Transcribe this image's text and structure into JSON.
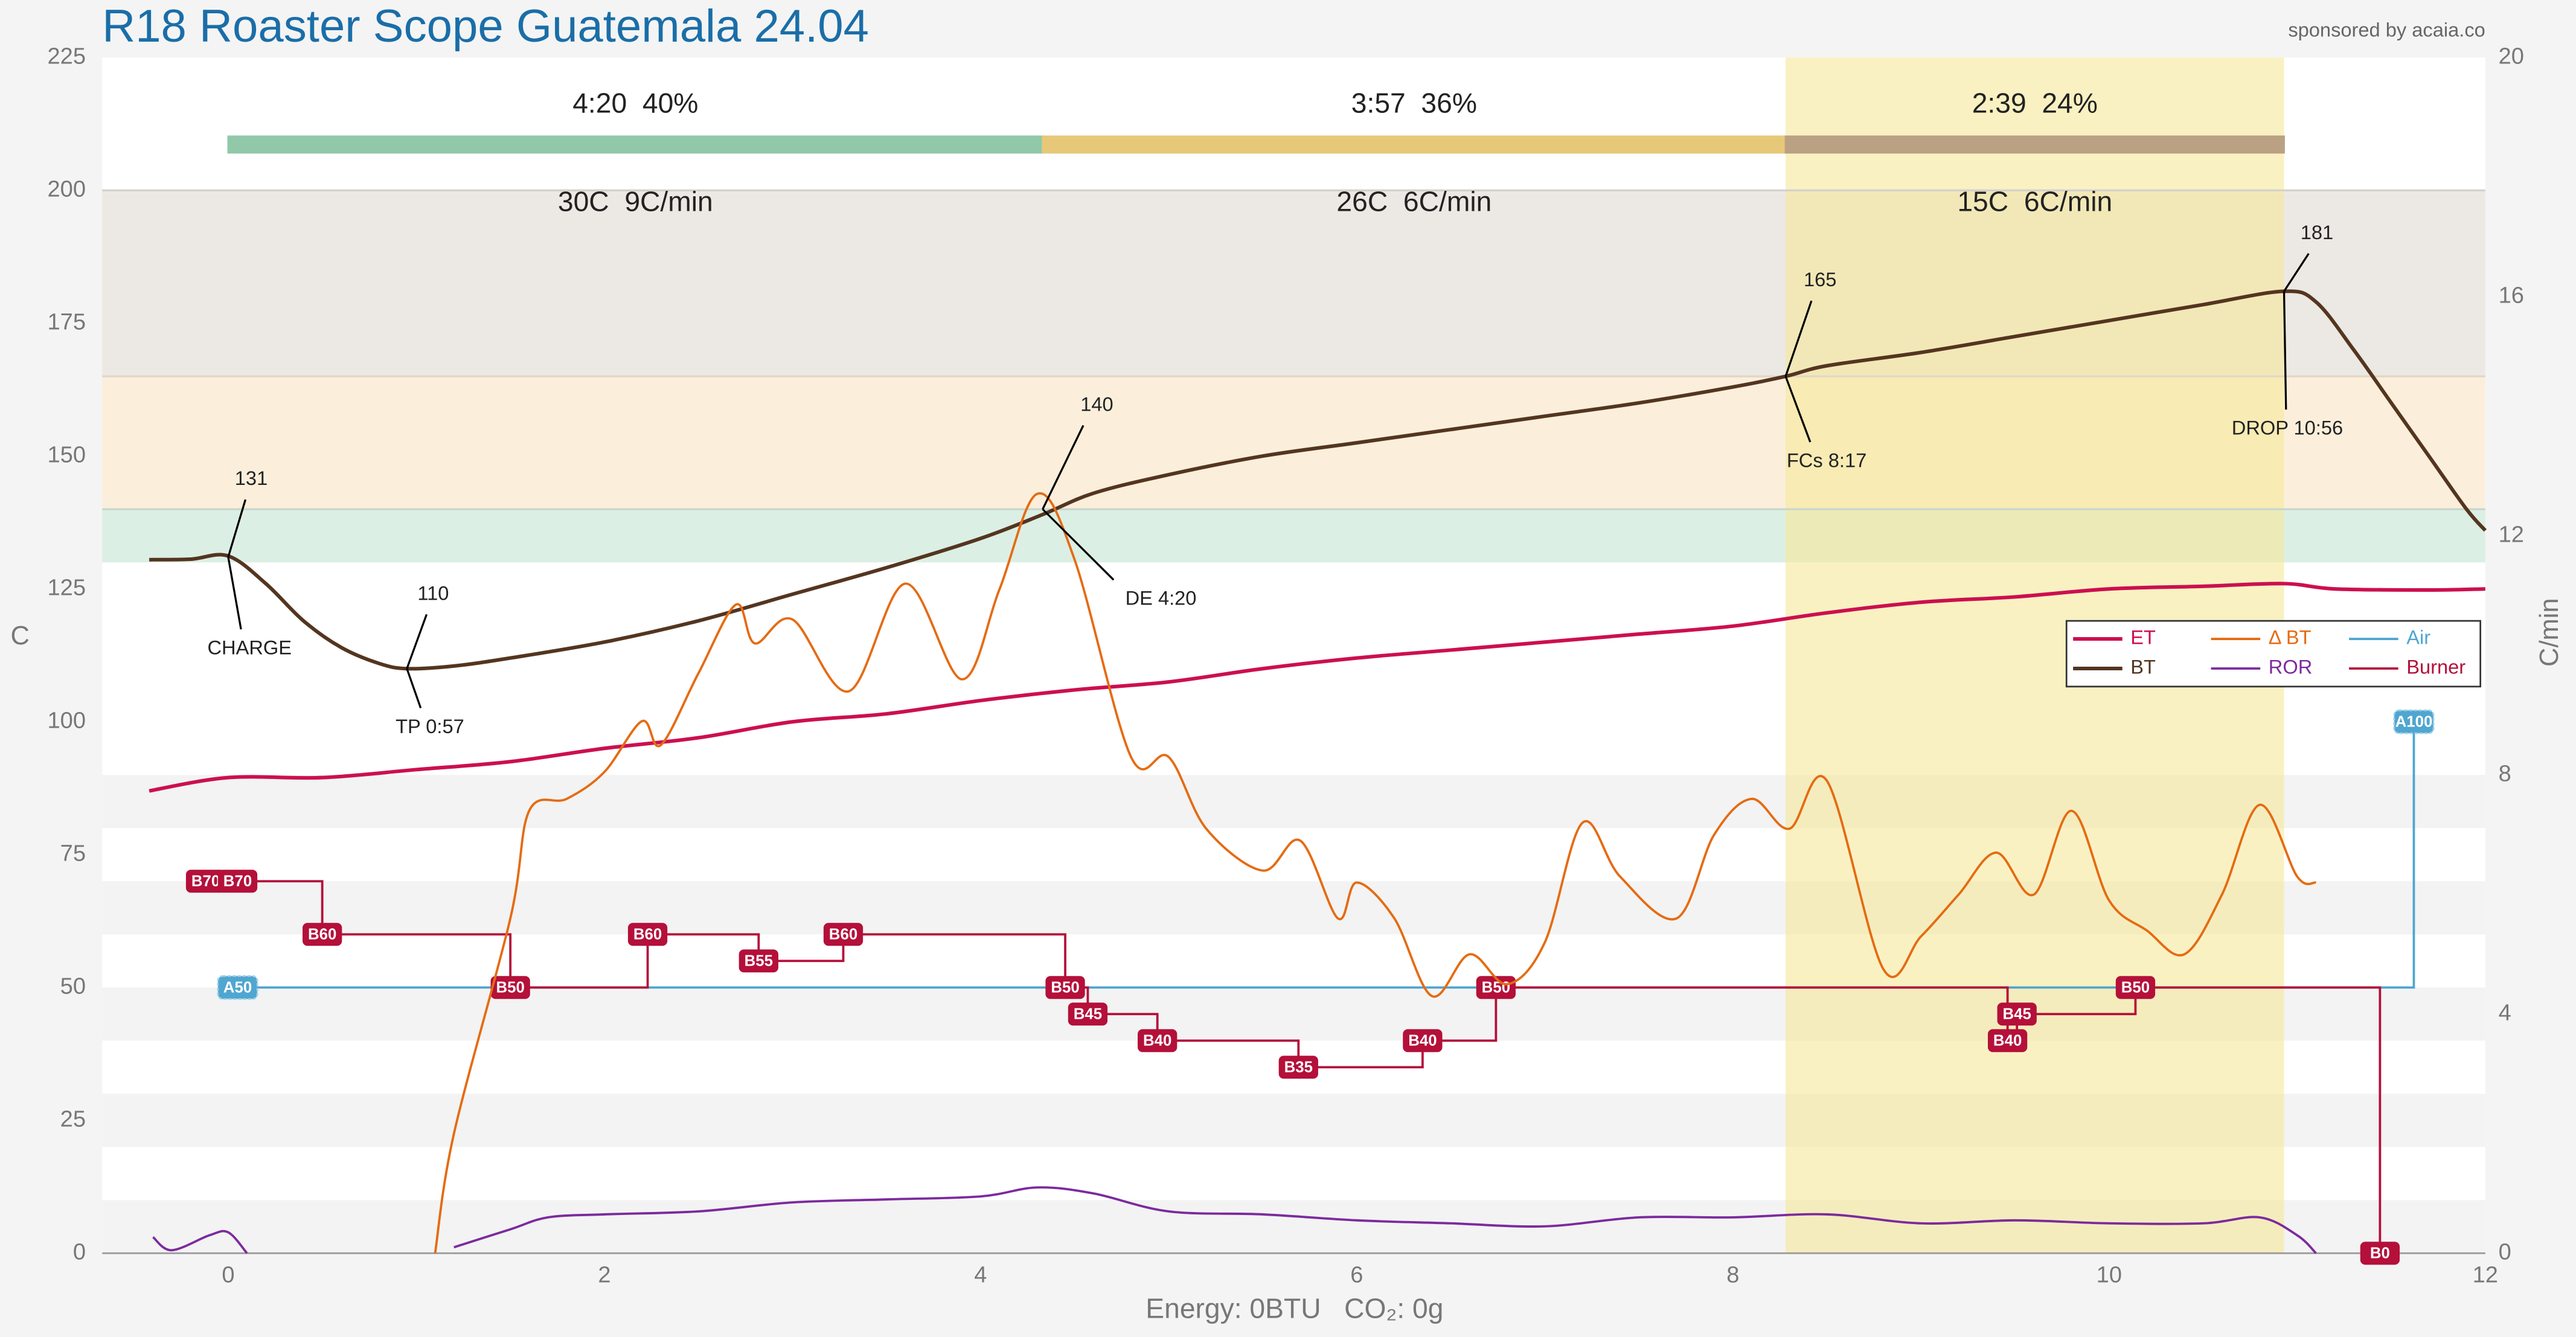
{
  "chart_data": {
    "type": "line",
    "title": "R18 Roaster Scope Guatemala 24.04",
    "subtitle": "sponsored by acaia.co",
    "x_label": "Energy: 0BTU   CO₂: 0g",
    "y_label": "C",
    "y2_label": "C/min",
    "xlim": [
      -0.67,
      12
    ],
    "xticks": [
      0,
      2,
      4,
      6,
      8,
      10,
      12
    ],
    "ylim": [
      0,
      225
    ],
    "yticks": [
      0,
      25,
      50,
      75,
      100,
      125,
      150,
      175,
      200,
      225
    ],
    "y2lim": [
      0,
      20
    ],
    "y2ticks": [
      0,
      4,
      8,
      12,
      16,
      20
    ],
    "legend": "right",
    "phases": [
      {
        "start": 0,
        "end": 4.33,
        "color": "#98d3b2",
        "time_pct": "4:20  40%",
        "rise": "30C  9C/min"
      },
      {
        "start": 4.33,
        "end": 8.28,
        "color": "#f2d27e",
        "time_pct": "3:57  36%",
        "rise": "26C  6C/min"
      },
      {
        "start": 8.28,
        "end": 10.93,
        "color": "#c4a98a",
        "time_pct": "2:39  24%",
        "rise": "15C  6C/min"
      }
    ],
    "highlight_phase": 2,
    "highlight_color": "#f7e79a",
    "temp_bands": [
      {
        "from": 130,
        "to": 140,
        "color": "#dcefe4"
      },
      {
        "from": 140,
        "to": 165,
        "color": "#fbefdc"
      },
      {
        "from": 165,
        "to": 200,
        "color": "#ece8e3"
      }
    ],
    "stripes": [
      [
        0,
        10
      ],
      [
        20,
        30
      ],
      [
        40,
        50
      ],
      [
        60,
        70
      ],
      [
        80,
        90
      ]
    ],
    "events": [
      {
        "label": "CHARGE",
        "time": 0,
        "value": 131
      },
      {
        "label": "TP 0:57",
        "time": 0.95,
        "value": 110
      },
      {
        "label": "DE 4:20",
        "time": 4.33,
        "value": 140
      },
      {
        "label": "FCs 8:17",
        "time": 8.28,
        "value": 165
      },
      {
        "label": "DROP 10:56",
        "time": 10.93,
        "value": 181
      }
    ],
    "series": [
      {
        "name": "ET",
        "color": "#cc0f50",
        "width": 2.2,
        "x": [
          -0.42,
          0,
          0.5,
          1,
          1.5,
          2,
          2.5,
          3,
          3.5,
          4,
          4.5,
          5,
          5.5,
          6,
          6.5,
          7,
          7.5,
          8,
          8.5,
          9,
          9.5,
          10,
          10.5,
          10.93,
          11.2,
          11.7,
          12
        ],
        "values": [
          87,
          89.5,
          89.5,
          91,
          92.5,
          95,
          97,
          100,
          101.5,
          104,
          106,
          107.5,
          110,
          112,
          113.5,
          115,
          116.5,
          118,
          120.5,
          122.5,
          123.5,
          125,
          125.5,
          126,
          125,
          124.8,
          125
        ]
      },
      {
        "name": "BT",
        "color": "#543520",
        "width": 2.2,
        "x": [
          -0.42,
          -0.2,
          0,
          0.2,
          0.4,
          0.6,
          0.8,
          0.95,
          1.2,
          1.5,
          2,
          2.5,
          3,
          3.5,
          4,
          4.33,
          4.6,
          5,
          5.5,
          6,
          6.5,
          7,
          7.5,
          8,
          8.28,
          8.5,
          9,
          9.5,
          10,
          10.5,
          10.93,
          11.1,
          11.3,
          11.5,
          11.7,
          11.9,
          12
        ],
        "values": [
          130.5,
          130.6,
          131.2,
          126,
          119,
          114,
          111,
          110,
          110.5,
          112,
          115,
          119,
          124,
          129,
          134.5,
          139,
          143,
          146.5,
          150,
          152.5,
          155,
          157.5,
          160,
          163,
          165,
          167,
          169.5,
          172.5,
          175.5,
          178.5,
          181,
          179,
          170,
          160,
          150,
          140,
          136
        ]
      },
      {
        "name": "Δ BT",
        "color": "#e56b12",
        "width": 1.4,
        "axis": "y2",
        "x": [
          1.1,
          1.2,
          1.5,
          1.6,
          1.8,
          2,
          2.2,
          2.3,
          2.5,
          2.7,
          2.8,
          3,
          3.3,
          3.6,
          3.9,
          4.1,
          4.3,
          4.5,
          4.8,
          5,
          5.2,
          5.5,
          5.7,
          5.9,
          6,
          6.2,
          6.4,
          6.6,
          6.8,
          7,
          7.2,
          7.4,
          7.7,
          7.9,
          8.1,
          8.3,
          8.5,
          8.8,
          9,
          9.2,
          9.4,
          9.6,
          9.8,
          10,
          10.2,
          10.4,
          10.6,
          10.8,
          11,
          11.1
        ],
        "values": [
          0,
          2,
          5.6,
          7.4,
          7.6,
          8.05,
          8.9,
          8.5,
          9.7,
          10.85,
          10.2,
          10.6,
          9.4,
          11.2,
          9.6,
          11.1,
          12.7,
          11.6,
          8.3,
          8.3,
          7.1,
          6.4,
          6.9,
          5.6,
          6.2,
          5.6,
          4.3,
          5,
          4.5,
          5.2,
          7.2,
          6.3,
          5.6,
          7,
          7.6,
          7.1,
          7.9,
          4.75,
          5.3,
          6,
          6.7,
          6,
          7.4,
          5.9,
          5.4,
          5,
          6,
          7.5,
          6.3,
          6.2
        ]
      },
      {
        "name": "ROR",
        "color": "#7c2a9e",
        "width": 1.4,
        "axis": "y2",
        "x": [
          -0.4,
          -0.3,
          -0.1,
          0,
          0.1,
          0.6,
          1.2,
          1.5,
          1.7,
          2,
          2.5,
          3,
          3.5,
          4,
          4.3,
          4.6,
          5,
          5.5,
          6,
          6.5,
          7,
          7.5,
          8,
          8.5,
          9,
          9.5,
          10,
          10.5,
          10.8,
          11,
          11.1
        ],
        "values": [
          0.27,
          0.05,
          0.3,
          0.35,
          0,
          null,
          0.1,
          0.4,
          0.6,
          0.65,
          0.7,
          0.85,
          0.9,
          0.95,
          1.1,
          1,
          0.7,
          0.65,
          0.55,
          0.5,
          0.45,
          0.6,
          0.6,
          0.65,
          0.5,
          0.55,
          0.5,
          0.5,
          0.6,
          0.3,
          0
        ]
      },
      {
        "name": "Air",
        "color": "#4fa6d0",
        "width": 1.4,
        "style": "step",
        "x": [
          0.05,
          11.62
        ],
        "values": [
          50,
          100
        ],
        "value_labels": [
          "A50",
          "A100"
        ],
        "end": 11.62
      },
      {
        "name": "Burner",
        "color": "#b4103a",
        "width": 1.4,
        "style": "step",
        "x": [
          -0.12,
          0.05,
          0.5,
          1.5,
          2.23,
          2.82,
          3.27,
          4.45,
          4.57,
          4.94,
          5.69,
          6.35,
          6.74,
          9.46,
          9.51,
          10.14,
          11.44
        ],
        "values": [
          70,
          70,
          60,
          50,
          60,
          55,
          60,
          50,
          45,
          40,
          35,
          40,
          50,
          40,
          45,
          50,
          0
        ],
        "value_labels": [
          "B70",
          "B70",
          "B60",
          "B50",
          "B60",
          "B55",
          "B60",
          "B50",
          "B45",
          "B40",
          "B35",
          "B40",
          "B50",
          "B40",
          "B45",
          "B50",
          "B0"
        ]
      }
    ]
  }
}
